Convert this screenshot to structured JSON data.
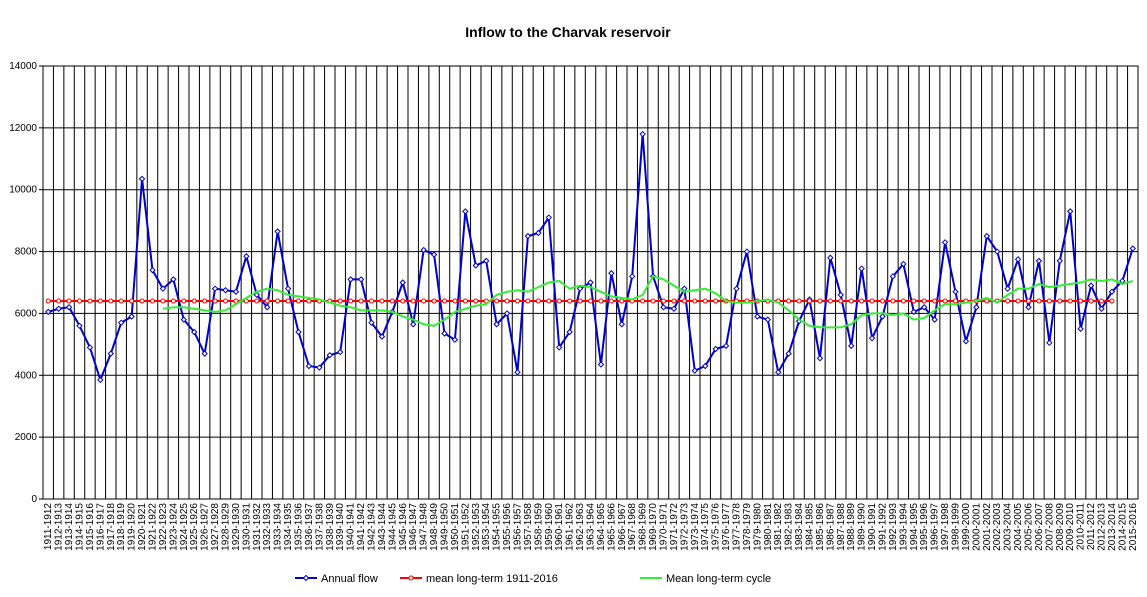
{
  "chart_data": {
    "type": "line",
    "title": "Inflow to the Charvak reservoir",
    "categories": [
      "1911-1912",
      "1912-1913",
      "1913-1914",
      "1914-1915",
      "1915-1916",
      "1916-1917",
      "1917-1918",
      "1918-1919",
      "1919-1920",
      "1920-1921",
      "1921-1922",
      "1922-1923",
      "1923-1924",
      "1924-1925",
      "1925-1926",
      "1926-1927",
      "1927-1928",
      "1928-1929",
      "1929-1930",
      "1930-1931",
      "1931-1932",
      "1932-1933",
      "1933-1934",
      "1934-1935",
      "1935-1936",
      "1936-1937",
      "1937-1938",
      "1938-1939",
      "1939-1940",
      "1940-1941",
      "1941-1942",
      "1942-1943",
      "1943-1944",
      "1944-1945",
      "1945-1946",
      "1946-1947",
      "1947-1948",
      "1948-1949",
      "1949-1950",
      "1950-1951",
      "1951-1952",
      "1952-1953",
      "1953-1954",
      "1954-1955",
      "1955-1956",
      "1956-1957",
      "1957-1958",
      "1958-1959",
      "1959-1960",
      "1960-1961",
      "1961-1962",
      "1962-1963",
      "1963-1964",
      "1964-1965",
      "1965-1966",
      "1966-1967",
      "1967-1968",
      "1968-1969",
      "1969-1970",
      "1970-1971",
      "1971-1972",
      "1972-1973",
      "1973-1974",
      "1974-1975",
      "1975-1976",
      "1976-1977",
      "1977-1978",
      "1978-1979",
      "1979-1980",
      "1980-1981",
      "1981-1982",
      "1982-1983",
      "1983-1984",
      "1984-1985",
      "1985-1986",
      "1986-1987",
      "1987-1988",
      "1988-1989",
      "1989-1990",
      "1990-1991",
      "1991-1992",
      "1992-1993",
      "1993-1994",
      "1994-1995",
      "1995-1996",
      "1996-1997",
      "1997-1998",
      "1998-1999",
      "1999-2000",
      "2000-2001",
      "2001-2002",
      "2002-2003",
      "2003-2004",
      "2004-2005",
      "2005-2006",
      "2006-2007",
      "2007-2008",
      "2008-2009",
      "2009-2010",
      "2010-2011",
      "2011-2012",
      "2012-2013",
      "2013-2014",
      "2014-2015",
      "2015-2016"
    ],
    "series": [
      {
        "name": "Annual flow",
        "color": "#0000cc",
        "marker": "diamond",
        "values": [
          6050,
          6150,
          6200,
          5600,
          4900,
          3850,
          4700,
          5700,
          5900,
          10350,
          7400,
          6800,
          7100,
          5800,
          5400,
          4700,
          6800,
          6750,
          6700,
          7850,
          6600,
          6200,
          8650,
          6800,
          5400,
          4300,
          4250,
          4650,
          4750,
          7100,
          7100,
          5700,
          5250,
          6050,
          7000,
          5650,
          8050,
          7900,
          5350,
          5150,
          9300,
          7550,
          7700,
          5650,
          6000,
          4100,
          8500,
          8600,
          9100,
          4900,
          5400,
          6800,
          7000,
          4350,
          7300,
          5650,
          7200,
          11800,
          7200,
          6200,
          6150,
          6800,
          4150,
          4300,
          4850,
          4950,
          6800,
          8000,
          5900,
          5800,
          4100,
          4700,
          5750,
          6450,
          4550,
          7800,
          6600,
          4950,
          7450,
          5200,
          5900,
          7200,
          7600,
          6050,
          6200,
          5800,
          8300,
          6700,
          5100,
          6200,
          8500,
          8000,
          6800,
          7750,
          6200,
          7700,
          5050,
          7700,
          9300,
          5500,
          6900,
          6150,
          6700,
          7050,
          8100
        ]
      },
      {
        "name": "mean long-term 1911-2016",
        "color": "#ff0000",
        "marker": "circle",
        "values": [
          6400,
          6400,
          6400,
          6400,
          6400,
          6400,
          6400,
          6400,
          6400,
          6400,
          6400,
          6400,
          6400,
          6400,
          6400,
          6400,
          6400,
          6400,
          6400,
          6400,
          6400,
          6400,
          6400,
          6400,
          6400,
          6400,
          6400,
          6400,
          6400,
          6400,
          6400,
          6400,
          6400,
          6400,
          6400,
          6400,
          6400,
          6400,
          6400,
          6400,
          6400,
          6400,
          6400,
          6400,
          6400,
          6400,
          6400,
          6400,
          6400,
          6400,
          6400,
          6400,
          6400,
          6400,
          6400,
          6400,
          6400,
          6400,
          6400,
          6400,
          6400,
          6400,
          6400,
          6400,
          6400,
          6400,
          6400,
          6400,
          6400,
          6400,
          6400,
          6400,
          6400,
          6400,
          6400,
          6400,
          6400,
          6400,
          6400,
          6400,
          6400,
          6400,
          6400,
          6400,
          6400,
          6400,
          6400,
          6400,
          6400,
          6400,
          6400,
          6400,
          6400,
          6400,
          6400,
          6400,
          6400,
          6400,
          6400,
          6400,
          6400,
          6400,
          6400,
          null,
          null
        ]
      },
      {
        "name": "Mean long-term cycle",
        "color": "#33ee33",
        "marker": "none",
        "values": [
          null,
          null,
          null,
          null,
          null,
          null,
          null,
          null,
          null,
          null,
          null,
          6150,
          6200,
          6200,
          6150,
          6100,
          6050,
          6100,
          6300,
          6500,
          6700,
          6800,
          6750,
          6600,
          6550,
          6500,
          6450,
          6350,
          6250,
          6200,
          6100,
          6100,
          6100,
          6050,
          5900,
          5800,
          5650,
          5600,
          5800,
          6050,
          6150,
          6250,
          6300,
          6600,
          6700,
          6750,
          6700,
          6850,
          7000,
          7050,
          6800,
          6900,
          6850,
          6700,
          6550,
          6500,
          6450,
          6600,
          7200,
          7100,
          6900,
          6700,
          6750,
          6800,
          6650,
          6400,
          6350,
          6350,
          6400,
          6450,
          6350,
          6100,
          5800,
          5600,
          5550,
          5550,
          5550,
          5650,
          5950,
          6000,
          6000,
          5950,
          6000,
          5800,
          5850,
          6100,
          6300,
          6300,
          6350,
          6400,
          6500,
          6350,
          6600,
          6800,
          6800,
          6950,
          6850,
          6900,
          6950,
          7000,
          7100,
          7050,
          7100,
          6950,
          7050
        ]
      }
    ],
    "ylim": [
      0,
      14000
    ],
    "yticks": [
      0,
      2000,
      4000,
      6000,
      8000,
      10000,
      12000,
      14000
    ],
    "grid": true,
    "legend": "bottom"
  }
}
